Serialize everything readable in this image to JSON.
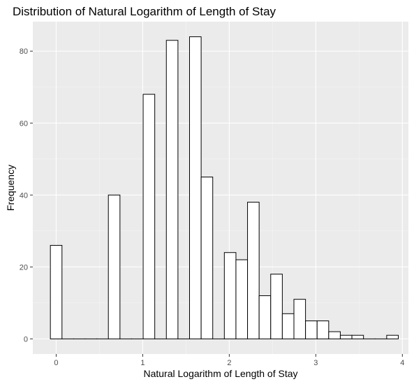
{
  "chart_data": {
    "type": "bar",
    "title": "Distribution of Natural Logarithm of Length of Stay",
    "xlabel": "Natural Logarithm of Length of Stay",
    "ylabel": "Frequency",
    "xlim": [
      -0.27,
      4.07
    ],
    "ylim": [
      -4.2,
      88.2
    ],
    "x_ticks": [
      0,
      1,
      2,
      3,
      4
    ],
    "y_ticks": [
      0,
      20,
      40,
      60,
      80
    ],
    "bin_width": 0.134,
    "bins": [
      {
        "center": 0.0,
        "count": 26
      },
      {
        "center": 0.134,
        "count": 0
      },
      {
        "center": 0.268,
        "count": 0
      },
      {
        "center": 0.402,
        "count": 0
      },
      {
        "center": 0.536,
        "count": 0
      },
      {
        "center": 0.67,
        "count": 40
      },
      {
        "center": 0.804,
        "count": 0
      },
      {
        "center": 0.938,
        "count": 0
      },
      {
        "center": 1.072,
        "count": 68
      },
      {
        "center": 1.206,
        "count": 0
      },
      {
        "center": 1.34,
        "count": 83
      },
      {
        "center": 1.474,
        "count": 0
      },
      {
        "center": 1.608,
        "count": 84
      },
      {
        "center": 1.742,
        "count": 45
      },
      {
        "center": 1.876,
        "count": 0
      },
      {
        "center": 2.01,
        "count": 24
      },
      {
        "center": 2.144,
        "count": 22
      },
      {
        "center": 2.278,
        "count": 38
      },
      {
        "center": 2.412,
        "count": 12
      },
      {
        "center": 2.546,
        "count": 18
      },
      {
        "center": 2.68,
        "count": 7
      },
      {
        "center": 2.814,
        "count": 11
      },
      {
        "center": 2.948,
        "count": 5
      },
      {
        "center": 3.082,
        "count": 5
      },
      {
        "center": 3.216,
        "count": 2
      },
      {
        "center": 3.35,
        "count": 1
      },
      {
        "center": 3.484,
        "count": 1
      },
      {
        "center": 3.618,
        "count": 0
      },
      {
        "center": 3.752,
        "count": 0
      },
      {
        "center": 3.886,
        "count": 1
      }
    ],
    "grid": true,
    "colors": {
      "panel_background": "#ebebeb",
      "grid_major": "#ffffff",
      "grid_minor": "#f5f5f5",
      "bar_fill": "#ffffff",
      "bar_outline": "#000000",
      "tick_mark": "#333333",
      "tick_label": "#4d4d4d"
    }
  }
}
